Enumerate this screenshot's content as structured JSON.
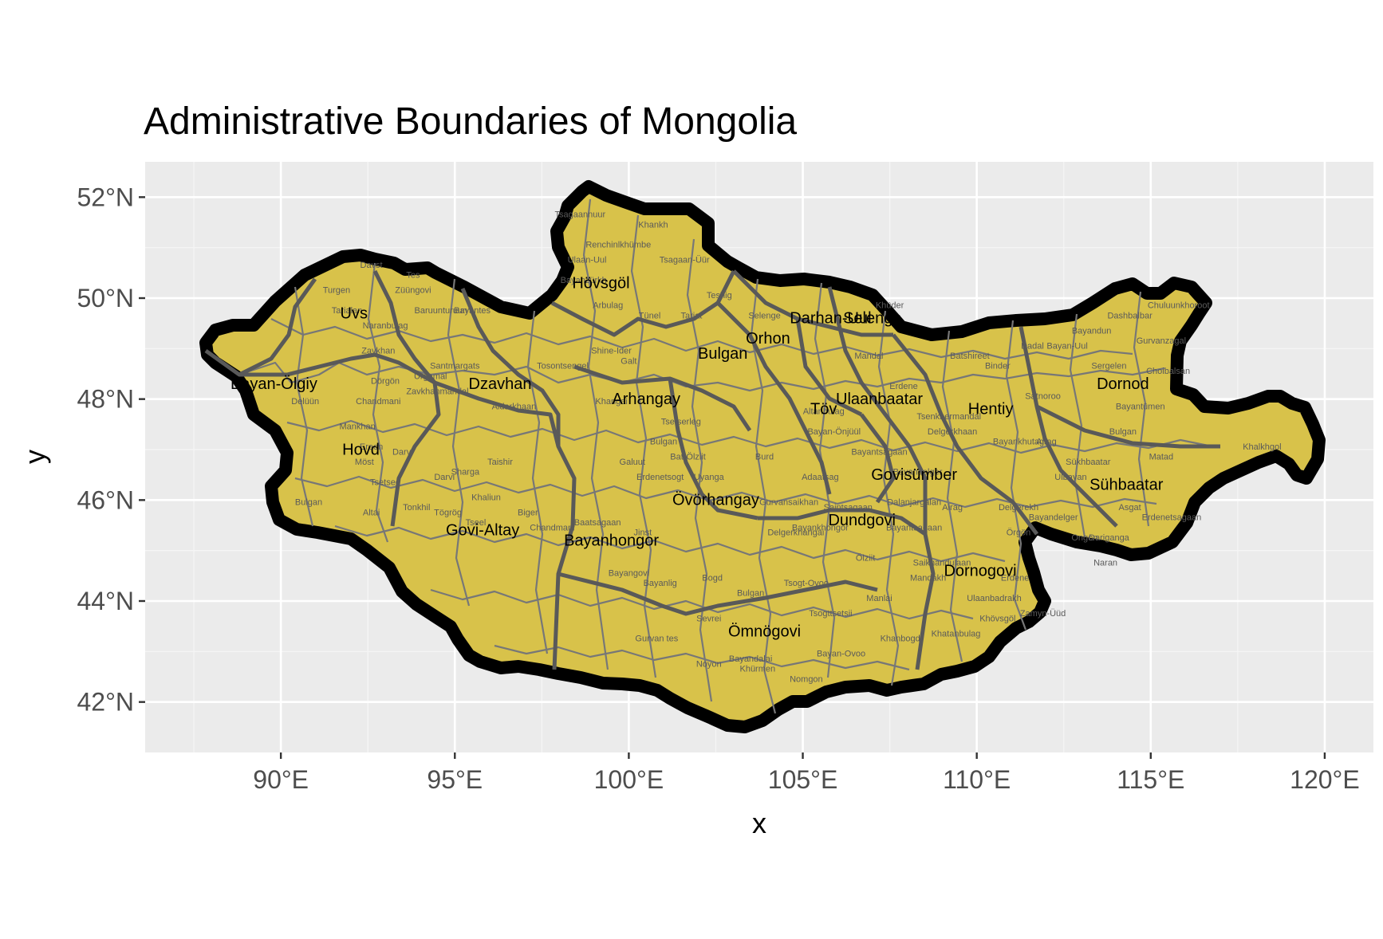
{
  "title": "Administrative Boundaries of Mongolia",
  "axes": {
    "x_title": "x",
    "y_title": "y",
    "x_ticks": [
      {
        "value": 90,
        "label": "90°E"
      },
      {
        "value": 95,
        "label": "95°E"
      },
      {
        "value": 100,
        "label": "100°E"
      },
      {
        "value": 105,
        "label": "105°E"
      },
      {
        "value": 110,
        "label": "110°E"
      },
      {
        "value": 115,
        "label": "115°E"
      },
      {
        "value": 120,
        "label": "120°E"
      }
    ],
    "y_ticks": [
      {
        "value": 42,
        "label": "42°N"
      },
      {
        "value": 44,
        "label": "44°N"
      },
      {
        "value": 46,
        "label": "46°N"
      },
      {
        "value": 48,
        "label": "48°N"
      },
      {
        "value": 50,
        "label": "50°N"
      },
      {
        "value": 52,
        "label": "52°N"
      }
    ],
    "xlim": [
      86.1,
      121.4
    ],
    "ylim": [
      41.0,
      52.7
    ]
  },
  "colors": {
    "fill": "#d8c24a",
    "country_border": "#000000",
    "province_border": "#595959",
    "soum_border": "#777777",
    "panel": "#ebebeb"
  },
  "provinces": [
    {
      "name": "Uvs",
      "lon": 92.1,
      "lat": 49.6
    },
    {
      "name": "Bayan-Ölgiy",
      "lon": 89.8,
      "lat": 48.2
    },
    {
      "name": "Hövsgöl",
      "lon": 99.2,
      "lat": 50.2
    },
    {
      "name": "Dzavhan",
      "lon": 96.3,
      "lat": 48.2
    },
    {
      "name": "Arhangay",
      "lon": 100.5,
      "lat": 47.9
    },
    {
      "name": "Bulgan",
      "lon": 102.7,
      "lat": 48.8
    },
    {
      "name": "Orhon",
      "lon": 104.0,
      "lat": 49.1
    },
    {
      "name": "Darhan-Uul",
      "lon": 105.8,
      "lat": 49.5
    },
    {
      "name": "Selenge",
      "lon": 107.0,
      "lat": 49.5
    },
    {
      "name": "Ulaanbaatar",
      "lon": 107.2,
      "lat": 47.9
    },
    {
      "name": "Töv",
      "lon": 105.6,
      "lat": 47.7
    },
    {
      "name": "Hentiy",
      "lon": 110.4,
      "lat": 47.7
    },
    {
      "name": "Dornod",
      "lon": 114.2,
      "lat": 48.2
    },
    {
      "name": "Hovd",
      "lon": 92.3,
      "lat": 46.9
    },
    {
      "name": "Govisümber",
      "lon": 108.2,
      "lat": 46.4
    },
    {
      "name": "Sühbaatar",
      "lon": 114.3,
      "lat": 46.2
    },
    {
      "name": "Övörhangay",
      "lon": 102.5,
      "lat": 45.9
    },
    {
      "name": "Govi-Altay",
      "lon": 95.8,
      "lat": 45.3
    },
    {
      "name": "Bayanhongor",
      "lon": 99.5,
      "lat": 45.1
    },
    {
      "name": "Dundgovi",
      "lon": 106.7,
      "lat": 45.5
    },
    {
      "name": "Dornogovi",
      "lon": 110.1,
      "lat": 44.5
    },
    {
      "name": "Ömnögovi",
      "lon": 103.9,
      "lat": 43.3
    }
  ],
  "soums": [
    {
      "name": "Tsagaannuur",
      "lon": 98.6,
      "lat": 51.6
    },
    {
      "name": "Khankh",
      "lon": 100.7,
      "lat": 51.4
    },
    {
      "name": "Renchinlkhümbe",
      "lon": 99.7,
      "lat": 51.0
    },
    {
      "name": "Tsagaan-Üür",
      "lon": 101.6,
      "lat": 50.7
    },
    {
      "name": "Ulaan-Uul",
      "lon": 98.8,
      "lat": 50.7
    },
    {
      "name": "Bayanzürkh",
      "lon": 98.7,
      "lat": 50.3
    },
    {
      "name": "Arbulag",
      "lon": 99.4,
      "lat": 49.8
    },
    {
      "name": "Tünel",
      "lon": 100.6,
      "lat": 49.6
    },
    {
      "name": "Tariat",
      "lon": 101.8,
      "lat": 49.6
    },
    {
      "name": "Teshig",
      "lon": 102.6,
      "lat": 50.0
    },
    {
      "name": "Selenge",
      "lon": 103.9,
      "lat": 49.6
    },
    {
      "name": "Davst",
      "lon": 92.6,
      "lat": 50.6
    },
    {
      "name": "Tes",
      "lon": 93.8,
      "lat": 50.4
    },
    {
      "name": "Züüngovi",
      "lon": 93.8,
      "lat": 50.1
    },
    {
      "name": "Turgen",
      "lon": 91.6,
      "lat": 50.1
    },
    {
      "name": "Baruunturuun",
      "lon": 94.6,
      "lat": 49.7
    },
    {
      "name": "Tarialan",
      "lon": 91.9,
      "lat": 49.7
    },
    {
      "name": "Bayantes",
      "lon": 95.5,
      "lat": 49.7
    },
    {
      "name": "Naranbulag",
      "lon": 93.0,
      "lat": 49.4
    },
    {
      "name": "Zavkhan",
      "lon": 92.8,
      "lat": 48.9
    },
    {
      "name": "Dörgön",
      "lon": 93.0,
      "lat": 48.3
    },
    {
      "name": "Urgamal",
      "lon": 94.3,
      "lat": 48.4
    },
    {
      "name": "Santmargats",
      "lon": 95.0,
      "lat": 48.6
    },
    {
      "name": "Zavkhanmandal",
      "lon": 94.5,
      "lat": 48.1
    },
    {
      "name": "Tosontsengel",
      "lon": 98.1,
      "lat": 48.6
    },
    {
      "name": "Tsetserleg",
      "lon": 101.5,
      "lat": 47.5
    },
    {
      "name": "Aldarkhaan",
      "lon": 96.7,
      "lat": 47.8
    },
    {
      "name": "Shine-Ider",
      "lon": 99.5,
      "lat": 48.9
    },
    {
      "name": "Galt",
      "lon": 100.0,
      "lat": 48.7
    },
    {
      "name": "Khangai",
      "lon": 99.5,
      "lat": 47.9
    },
    {
      "name": "Chandmani",
      "lon": 92.8,
      "lat": 47.9
    },
    {
      "name": "Mankhan",
      "lon": 92.2,
      "lat": 47.4
    },
    {
      "name": "Delüün",
      "lon": 90.7,
      "lat": 47.9
    },
    {
      "name": "Ereen",
      "lon": 92.6,
      "lat": 47.0
    },
    {
      "name": "Darvi",
      "lon": 93.5,
      "lat": 46.9
    },
    {
      "name": "Möst",
      "lon": 92.4,
      "lat": 46.7
    },
    {
      "name": "Tsetseg",
      "lon": 93.0,
      "lat": 46.3
    },
    {
      "name": "Altai",
      "lon": 92.6,
      "lat": 45.7
    },
    {
      "name": "Bulgan",
      "lon": 90.8,
      "lat": 45.9
    },
    {
      "name": "Tonkhil",
      "lon": 93.9,
      "lat": 45.8
    },
    {
      "name": "Darvi",
      "lon": 94.7,
      "lat": 46.4
    },
    {
      "name": "Sharga",
      "lon": 95.3,
      "lat": 46.5
    },
    {
      "name": "Khaliun",
      "lon": 95.9,
      "lat": 46.0
    },
    {
      "name": "Taishir",
      "lon": 96.3,
      "lat": 46.7
    },
    {
      "name": "Tögrög",
      "lon": 94.8,
      "lat": 45.7
    },
    {
      "name": "Tseel",
      "lon": 95.6,
      "lat": 45.5
    },
    {
      "name": "Biger",
      "lon": 97.1,
      "lat": 45.7
    },
    {
      "name": "Chandmani",
      "lon": 97.8,
      "lat": 45.4
    },
    {
      "name": "Baatsagaan",
      "lon": 99.1,
      "lat": 45.5
    },
    {
      "name": "Jinst",
      "lon": 100.4,
      "lat": 45.3
    },
    {
      "name": "Galuut",
      "lon": 100.1,
      "lat": 46.7
    },
    {
      "name": "Erdenetsogt",
      "lon": 100.9,
      "lat": 46.4
    },
    {
      "name": "Bayangovi",
      "lon": 100.0,
      "lat": 44.5
    },
    {
      "name": "Bayanlig",
      "lon": 100.9,
      "lat": 44.3
    },
    {
      "name": "Bogd",
      "lon": 102.4,
      "lat": 44.4
    },
    {
      "name": "Bulgan",
      "lon": 103.5,
      "lat": 44.1
    },
    {
      "name": "Tsogt-Ovoo",
      "lon": 105.1,
      "lat": 44.3
    },
    {
      "name": "Sevrei",
      "lon": 102.3,
      "lat": 43.6
    },
    {
      "name": "Gurvan tes",
      "lon": 100.8,
      "lat": 43.2
    },
    {
      "name": "Noyon",
      "lon": 102.3,
      "lat": 42.7
    },
    {
      "name": "Bayandalai",
      "lon": 103.5,
      "lat": 42.8
    },
    {
      "name": "Khürmen",
      "lon": 103.7,
      "lat": 42.6
    },
    {
      "name": "Nomgon",
      "lon": 105.1,
      "lat": 42.4
    },
    {
      "name": "Bayan-Ovoo",
      "lon": 106.1,
      "lat": 42.9
    },
    {
      "name": "Khanbogd",
      "lon": 107.8,
      "lat": 43.2
    },
    {
      "name": "Tsogttsetsii",
      "lon": 105.8,
      "lat": 43.7
    },
    {
      "name": "Manlai",
      "lon": 107.2,
      "lat": 44.0
    },
    {
      "name": "Khatanbulag",
      "lon": 109.4,
      "lat": 43.3
    },
    {
      "name": "Khövsgöl",
      "lon": 110.6,
      "lat": 43.6
    },
    {
      "name": "Ulaanbadrakh",
      "lon": 110.5,
      "lat": 44.0
    },
    {
      "name": "Zamyn-Üüd",
      "lon": 111.9,
      "lat": 43.7
    },
    {
      "name": "Erdene",
      "lon": 111.1,
      "lat": 44.4
    },
    {
      "name": "Mandakh",
      "lon": 108.6,
      "lat": 44.4
    },
    {
      "name": "Saikhandulaan",
      "lon": 109.0,
      "lat": 44.7
    },
    {
      "name": "Ölziit",
      "lon": 106.8,
      "lat": 44.8
    },
    {
      "name": "Örgön",
      "lon": 111.2,
      "lat": 45.3
    },
    {
      "name": "Airag",
      "lon": 109.3,
      "lat": 45.8
    },
    {
      "name": "Dalanjargalan",
      "lon": 108.2,
      "lat": 45.9
    },
    {
      "name": "Saintsagaan",
      "lon": 106.3,
      "lat": 45.8
    },
    {
      "name": "Delgerkhangai",
      "lon": 104.8,
      "lat": 45.3
    },
    {
      "name": "Bayankhongor",
      "lon": 105.5,
      "lat": 45.4
    },
    {
      "name": "Adaatsag",
      "lon": 105.5,
      "lat": 46.4
    },
    {
      "name": "Gurvansaikhan",
      "lon": 104.6,
      "lat": 45.9
    },
    {
      "name": "Bayantsagaan",
      "lon": 107.2,
      "lat": 46.9
    },
    {
      "name": "Bayan-Önjüül",
      "lon": 105.9,
      "lat": 47.3
    },
    {
      "name": "Mandal",
      "lon": 106.9,
      "lat": 48.8
    },
    {
      "name": "Khüder",
      "lon": 107.5,
      "lat": 49.8
    },
    {
      "name": "Erdene",
      "lon": 107.9,
      "lat": 48.2
    },
    {
      "name": "Batshireet",
      "lon": 109.8,
      "lat": 48.8
    },
    {
      "name": "Binder",
      "lon": 110.6,
      "lat": 48.6
    },
    {
      "name": "Dadal",
      "lon": 111.6,
      "lat": 49.0
    },
    {
      "name": "Bayan-Uul",
      "lon": 112.6,
      "lat": 49.0
    },
    {
      "name": "Bayandun",
      "lon": 113.3,
      "lat": 49.3
    },
    {
      "name": "Dashbalbar",
      "lon": 114.4,
      "lat": 49.6
    },
    {
      "name": "Chuluunkhoroot",
      "lon": 115.8,
      "lat": 49.8
    },
    {
      "name": "Gurvanzagal",
      "lon": 115.3,
      "lat": 49.1
    },
    {
      "name": "Choibalsan",
      "lon": 115.5,
      "lat": 48.5
    },
    {
      "name": "Sergelen",
      "lon": 113.8,
      "lat": 48.6
    },
    {
      "name": "Bayantümen",
      "lon": 114.7,
      "lat": 47.8
    },
    {
      "name": "Bulgan",
      "lon": 114.2,
      "lat": 47.3
    },
    {
      "name": "Matad",
      "lon": 115.3,
      "lat": 46.8
    },
    {
      "name": "Khalkhgol",
      "lon": 118.2,
      "lat": 47.0
    },
    {
      "name": "Sükhbaatar",
      "lon": 113.2,
      "lat": 46.7
    },
    {
      "name": "Ulbayan",
      "lon": 112.7,
      "lat": 46.4
    },
    {
      "name": "Asgat",
      "lon": 114.4,
      "lat": 45.8
    },
    {
      "name": "Erdenetsagaan",
      "lon": 115.6,
      "lat": 45.6
    },
    {
      "name": "Dariganga",
      "lon": 113.8,
      "lat": 45.2
    },
    {
      "name": "Ongon",
      "lon": 113.1,
      "lat": 45.2
    },
    {
      "name": "Naran",
      "lon": 113.7,
      "lat": 44.7
    },
    {
      "name": "Bayandelger",
      "lon": 112.2,
      "lat": 45.6
    },
    {
      "name": "Delgerekh",
      "lon": 111.2,
      "lat": 45.8
    },
    {
      "name": "Airag",
      "lon": 112.0,
      "lat": 47.1
    },
    {
      "name": "Tsenkhermandal",
      "lon": 109.2,
      "lat": 47.6
    },
    {
      "name": "Bayankhutag",
      "lon": 111.2,
      "lat": 47.1
    },
    {
      "name": "Satnoroo",
      "lon": 111.9,
      "lat": 48.0
    },
    {
      "name": "Bayantsagaan",
      "lon": 108.2,
      "lat": 45.4
    },
    {
      "name": "Altanbulag",
      "lon": 105.6,
      "lat": 47.7
    },
    {
      "name": "Delgerkhaan",
      "lon": 109.3,
      "lat": 47.3
    },
    {
      "name": "Bayandelger",
      "lon": 108.3,
      "lat": 46.5
    },
    {
      "name": "Burd",
      "lon": 103.9,
      "lat": 46.8
    },
    {
      "name": "Bat-Ölziit",
      "lon": 101.7,
      "lat": 46.8
    },
    {
      "name": "Bulgan",
      "lon": 101.0,
      "lat": 47.1
    },
    {
      "name": "Uyanga",
      "lon": 102.3,
      "lat": 46.4
    }
  ]
}
